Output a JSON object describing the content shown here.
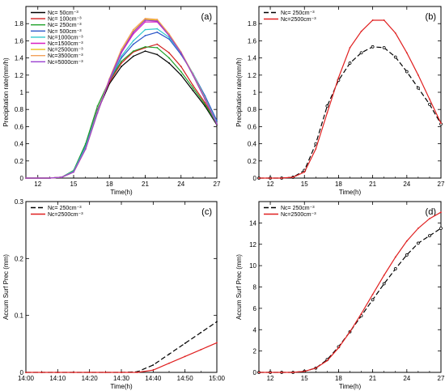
{
  "chart_data": [
    {
      "type": "line",
      "panel_label": "(a)",
      "xlabel": "Time(h)",
      "ylabel": "Precipitation  rate(mm/h)",
      "xlim": [
        11,
        27
      ],
      "ylim": [
        0,
        2
      ],
      "xticks": [
        12,
        15,
        18,
        21,
        24,
        27
      ],
      "xtick_labels": [
        "12",
        "15",
        "18",
        "21",
        "24",
        "27"
      ],
      "yticks": [
        0,
        0.2,
        0.4,
        0.6,
        0.8,
        1,
        1.2,
        1.4,
        1.6,
        1.8
      ],
      "ytick_labels": [
        "0",
        "0.2",
        "0.4",
        "0.6",
        "0.8",
        "1",
        "1.2",
        "1.4",
        "1.6",
        "1.8"
      ],
      "legend_position": "top-left",
      "x": [
        11,
        12,
        13,
        14,
        15,
        16,
        17,
        18,
        19,
        20,
        21,
        22,
        23,
        24,
        25,
        26,
        27
      ],
      "series": [
        {
          "name": "Nc=   50cm⁻³",
          "color": "#000000",
          "dash": "",
          "marker": false,
          "values": [
            0,
            0,
            0,
            0.01,
            0.08,
            0.36,
            0.78,
            1.1,
            1.3,
            1.42,
            1.48,
            1.44,
            1.34,
            1.2,
            1.02,
            0.84,
            0.62
          ]
        },
        {
          "name": "Nc=  100cm⁻³",
          "color": "#d21f1f",
          "dash": "",
          "marker": false,
          "values": [
            0,
            0,
            0,
            0.01,
            0.08,
            0.37,
            0.8,
            1.12,
            1.34,
            1.47,
            1.52,
            1.56,
            1.46,
            1.3,
            1.08,
            0.88,
            0.64
          ]
        },
        {
          "name": "Nc=  250cm⁻³",
          "color": "#1fa22a",
          "dash": "",
          "marker": false,
          "values": [
            0,
            0,
            0,
            0.01,
            0.09,
            0.4,
            0.84,
            1.14,
            1.36,
            1.48,
            1.53,
            1.52,
            1.4,
            1.24,
            1.05,
            0.86,
            0.63
          ]
        },
        {
          "name": "Nc=  500cm⁻³",
          "color": "#2a56c8",
          "dash": "",
          "marker": false,
          "values": [
            0,
            0,
            0,
            0.01,
            0.08,
            0.37,
            0.79,
            1.14,
            1.4,
            1.56,
            1.66,
            1.7,
            1.62,
            1.44,
            1.22,
            0.96,
            0.67
          ]
        },
        {
          "name": "Nc=1000cm⁻³",
          "color": "#2fc9cc",
          "dash": "",
          "marker": false,
          "values": [
            0,
            0,
            0,
            0.01,
            0.08,
            0.36,
            0.78,
            1.14,
            1.42,
            1.6,
            1.73,
            1.74,
            1.64,
            1.46,
            1.22,
            0.94,
            0.64
          ]
        },
        {
          "name": "Nc=1500cm⁻³",
          "color": "#d81fc2",
          "dash": "",
          "marker": false,
          "values": [
            0,
            0,
            0,
            0.01,
            0.07,
            0.34,
            0.76,
            1.14,
            1.46,
            1.68,
            1.82,
            1.82,
            1.66,
            1.46,
            1.2,
            0.92,
            0.63
          ]
        },
        {
          "name": "Nc=2500cm⁻³",
          "color": "#e9c01a",
          "dash": "",
          "marker": false,
          "values": [
            0,
            0,
            0,
            0.01,
            0.07,
            0.34,
            0.76,
            1.15,
            1.48,
            1.71,
            1.85,
            1.84,
            1.67,
            1.46,
            1.2,
            0.92,
            0.63
          ]
        },
        {
          "name": "Nc=3500cm⁻³",
          "color": "#f2a25a",
          "dash": "",
          "marker": false,
          "values": [
            0,
            0,
            0,
            0.01,
            0.07,
            0.34,
            0.77,
            1.16,
            1.5,
            1.73,
            1.86,
            1.85,
            1.68,
            1.47,
            1.21,
            0.93,
            0.63
          ]
        },
        {
          "name": "Nc=5000cm⁻³",
          "color": "#9a3fd0",
          "dash": "",
          "marker": false,
          "values": [
            0,
            0,
            0,
            0.01,
            0.07,
            0.34,
            0.76,
            1.15,
            1.47,
            1.7,
            1.84,
            1.83,
            1.66,
            1.46,
            1.2,
            0.92,
            0.63
          ]
        }
      ]
    },
    {
      "type": "line",
      "panel_label": "(b)",
      "xlabel": "Time(h)",
      "ylabel": "Precipitation  rate(mm/h)",
      "xlim": [
        11,
        27
      ],
      "ylim": [
        0,
        2
      ],
      "xticks": [
        12,
        15,
        18,
        21,
        24,
        27
      ],
      "xtick_labels": [
        "12",
        "15",
        "18",
        "21",
        "24",
        "27"
      ],
      "yticks": [
        0,
        0.2,
        0.4,
        0.6,
        0.8,
        1,
        1.2,
        1.4,
        1.6,
        1.8
      ],
      "ytick_labels": [
        "0",
        "0.2",
        "0.4",
        "0.6",
        "0.8",
        "1",
        "1.2",
        "1.4",
        "1.6",
        "1.8"
      ],
      "legend_position": "top-left",
      "x": [
        11,
        12,
        13,
        14,
        15,
        16,
        17,
        18,
        19,
        20,
        21,
        22,
        23,
        24,
        25,
        26,
        27
      ],
      "series": [
        {
          "name": "Nc=  250cm⁻³",
          "color": "#000000",
          "dash": "6,3",
          "marker": true,
          "values": [
            0,
            0,
            0,
            0.01,
            0.09,
            0.4,
            0.84,
            1.14,
            1.34,
            1.46,
            1.53,
            1.52,
            1.41,
            1.24,
            1.05,
            0.86,
            0.63
          ]
        },
        {
          "name": "Nc=2500cm⁻³",
          "color": "#e02020",
          "dash": "",
          "marker": false,
          "values": [
            0,
            0,
            0,
            0.01,
            0.07,
            0.34,
            0.76,
            1.17,
            1.52,
            1.71,
            1.84,
            1.84,
            1.69,
            1.46,
            1.2,
            0.92,
            0.64
          ]
        }
      ]
    },
    {
      "type": "line",
      "panel_label": "(c)",
      "xlabel": "Time(h)",
      "ylabel": "Accum  Surf  Prec  (mm)",
      "xlim": [
        0,
        60
      ],
      "ylim": [
        0,
        0.3
      ],
      "xticks": [
        0,
        10,
        20,
        30,
        40,
        50,
        60
      ],
      "xtick_labels": [
        "14:00",
        "14:10",
        "14:20",
        "14:30",
        "14:40",
        "14:50",
        "15:00"
      ],
      "yticks": [
        0,
        0.1,
        0.2,
        0.3
      ],
      "ytick_labels": [
        "0",
        "0.1",
        "0.2",
        "0.3"
      ],
      "legend_position": "top-left",
      "x": [
        0,
        5,
        10,
        15,
        20,
        25,
        30,
        35,
        40,
        45,
        50,
        55,
        60
      ],
      "series": [
        {
          "name": "Nc=  250cm⁻³",
          "color": "#000000",
          "dash": "6,3",
          "marker": false,
          "values": [
            0,
            0,
            0,
            0,
            0,
            0,
            0,
            0.001,
            0.013,
            0.032,
            0.051,
            0.07,
            0.089
          ]
        },
        {
          "name": "Nc=2500cm⁻³",
          "color": "#e02020",
          "dash": "",
          "marker": false,
          "values": [
            0,
            0,
            0,
            0,
            0,
            0,
            0,
            0,
            0.004,
            0.016,
            0.028,
            0.04,
            0.052
          ]
        }
      ]
    },
    {
      "type": "line",
      "panel_label": "(d)",
      "xlabel": "Time(h)",
      "ylabel": "Accum  Surf  Prec  (mm)",
      "xlim": [
        11,
        27
      ],
      "ylim": [
        0,
        16
      ],
      "xticks": [
        12,
        15,
        18,
        21,
        24,
        27
      ],
      "xtick_labels": [
        "12",
        "15",
        "18",
        "21",
        "24",
        "27"
      ],
      "yticks": [
        0,
        2,
        4,
        6,
        8,
        10,
        12,
        14
      ],
      "ytick_labels": [
        "0",
        "2",
        "4",
        "6",
        "8",
        "10",
        "12",
        "14"
      ],
      "legend_position": "top-left",
      "x": [
        11,
        12,
        13,
        14,
        15,
        16,
        17,
        18,
        19,
        20,
        21,
        22,
        23,
        24,
        25,
        26,
        27
      ],
      "series": [
        {
          "name": "Nc=  250cm⁻³",
          "color": "#000000",
          "dash": "6,3",
          "marker": true,
          "values": [
            0,
            0,
            0,
            0,
            0.1,
            0.4,
            1.2,
            2.4,
            3.8,
            5.3,
            6.8,
            8.3,
            9.7,
            11.0,
            12.1,
            12.8,
            13.5
          ]
        },
        {
          "name": "Nc=2500cm⁻³",
          "color": "#e02020",
          "dash": "",
          "marker": false,
          "values": [
            0,
            0,
            0,
            0,
            0.1,
            0.4,
            1.1,
            2.3,
            3.8,
            5.5,
            7.3,
            9.1,
            10.8,
            12.3,
            13.5,
            14.4,
            15.0
          ]
        }
      ]
    }
  ]
}
